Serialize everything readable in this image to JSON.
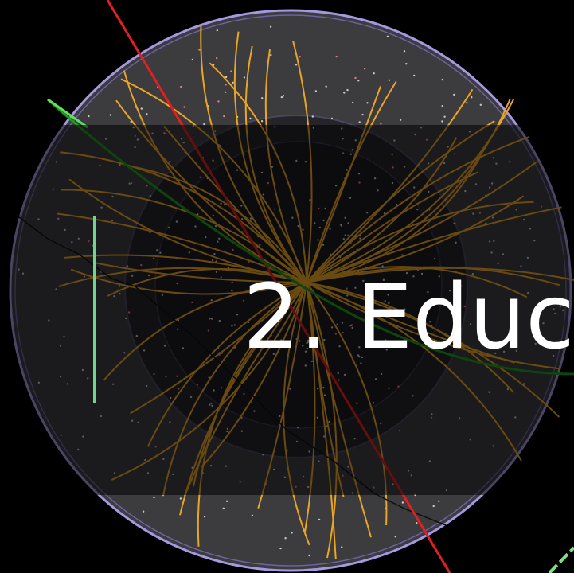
{
  "title": "2. Educ"
}
